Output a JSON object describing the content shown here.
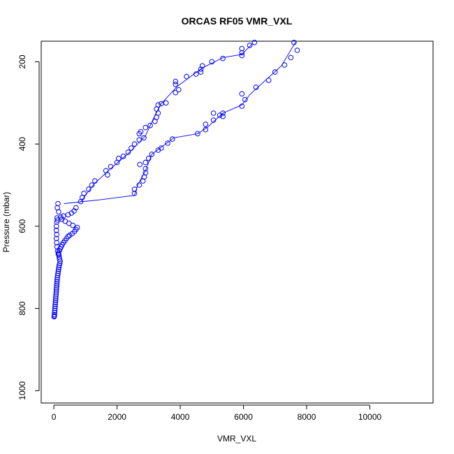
{
  "chart_data": {
    "type": "scatter",
    "title": "ORCAS RF05 VMR_VXL",
    "xlabel": "VMR_VXL",
    "ylabel": "Pressure (mbar)",
    "xlim": [
      -400,
      12000
    ],
    "ylim": [
      1030,
      150
    ],
    "y_reversed": true,
    "x_ticks": [
      0,
      2000,
      4000,
      6000,
      8000,
      10000
    ],
    "y_ticks": [
      200,
      400,
      600,
      800,
      1000
    ],
    "grid": false,
    "legend": "none",
    "series_color": "#0000ff",
    "marker": "open-circle",
    "series": [
      {
        "name": "",
        "style": "points",
        "points": [
          [
            10,
            820
          ],
          [
            15,
            818
          ],
          [
            20,
            815
          ],
          [
            25,
            810
          ],
          [
            30,
            805
          ],
          [
            35,
            800
          ],
          [
            40,
            795
          ],
          [
            45,
            790
          ],
          [
            50,
            785
          ],
          [
            55,
            780
          ],
          [
            60,
            775
          ],
          [
            65,
            770
          ],
          [
            70,
            765
          ],
          [
            75,
            760
          ],
          [
            80,
            755
          ],
          [
            85,
            750
          ],
          [
            90,
            745
          ],
          [
            95,
            740
          ],
          [
            100,
            735
          ],
          [
            105,
            730
          ],
          [
            110,
            725
          ],
          [
            120,
            720
          ],
          [
            130,
            715
          ],
          [
            140,
            710
          ],
          [
            150,
            705
          ],
          [
            160,
            700
          ],
          [
            170,
            695
          ],
          [
            190,
            690
          ],
          [
            200,
            685
          ],
          [
            180,
            680
          ],
          [
            170,
            675
          ],
          [
            160,
            670
          ],
          [
            150,
            665
          ],
          [
            170,
            660
          ],
          [
            200,
            655
          ],
          [
            230,
            650
          ],
          [
            260,
            645
          ],
          [
            300,
            640
          ],
          [
            350,
            635
          ],
          [
            400,
            630
          ],
          [
            450,
            625
          ],
          [
            500,
            622
          ],
          [
            580,
            618
          ],
          [
            650,
            613
          ],
          [
            700,
            608
          ],
          [
            740,
            603
          ],
          [
            600,
            598
          ],
          [
            480,
            593
          ],
          [
            360,
            588
          ],
          [
            250,
            583
          ],
          [
            120,
            585
          ],
          [
            100,
            580
          ],
          [
            90,
            590
          ],
          [
            80,
            600
          ],
          [
            80,
            610
          ],
          [
            90,
            620
          ],
          [
            80,
            630
          ],
          [
            90,
            640
          ],
          [
            100,
            650
          ],
          [
            120,
            660
          ],
          [
            140,
            668
          ],
          [
            220,
            578
          ],
          [
            300,
            575
          ],
          [
            450,
            572
          ],
          [
            560,
            568
          ],
          [
            640,
            563
          ],
          [
            700,
            555
          ],
          [
            150,
            565
          ],
          [
            110,
            555
          ],
          [
            130,
            545
          ],
          [
            2550,
            520
          ],
          [
            2550,
            510
          ],
          [
            2700,
            500
          ],
          [
            2820,
            490
          ],
          [
            2860,
            480
          ],
          [
            2900,
            470
          ],
          [
            2900,
            460
          ],
          [
            2720,
            450
          ],
          [
            2900,
            445
          ],
          [
            3000,
            435
          ],
          [
            3100,
            425
          ],
          [
            3300,
            415
          ],
          [
            3400,
            410
          ],
          [
            3600,
            398
          ],
          [
            3750,
            388
          ],
          [
            4550,
            375
          ],
          [
            4800,
            365
          ],
          [
            4800,
            352
          ],
          [
            5050,
            342
          ],
          [
            5050,
            325
          ],
          [
            5250,
            330
          ],
          [
            5350,
            325
          ],
          [
            5350,
            333
          ],
          [
            5950,
            308
          ],
          [
            6050,
            292
          ],
          [
            5950,
            278
          ],
          [
            6400,
            262
          ],
          [
            6800,
            245
          ],
          [
            7000,
            225
          ],
          [
            7300,
            208
          ],
          [
            7500,
            190
          ],
          [
            7700,
            172
          ],
          [
            7600,
            153
          ]
        ]
      },
      {
        "name": "",
        "style": "points",
        "points": [
          [
            850,
            540
          ],
          [
            900,
            530
          ],
          [
            950,
            520
          ],
          [
            1100,
            510
          ],
          [
            1200,
            500
          ],
          [
            1300,
            490
          ],
          [
            1700,
            475
          ],
          [
            1650,
            465
          ],
          [
            1800,
            455
          ],
          [
            2000,
            445
          ],
          [
            2050,
            435
          ],
          [
            2200,
            430
          ],
          [
            2350,
            420
          ],
          [
            2450,
            410
          ],
          [
            2550,
            400
          ],
          [
            2700,
            390
          ],
          [
            2850,
            385
          ],
          [
            2700,
            375
          ],
          [
            2750,
            370
          ],
          [
            2900,
            360
          ],
          [
            3050,
            355
          ],
          [
            3200,
            345
          ],
          [
            3250,
            335
          ],
          [
            3300,
            325
          ],
          [
            3250,
            315
          ],
          [
            3300,
            305
          ],
          [
            3400,
            302
          ],
          [
            3550,
            300
          ],
          [
            3850,
            275
          ],
          [
            3950,
            268
          ],
          [
            3850,
            255
          ],
          [
            3850,
            248
          ],
          [
            4200,
            236
          ],
          [
            4500,
            230
          ],
          [
            4650,
            225
          ],
          [
            4650,
            218
          ],
          [
            4700,
            210
          ],
          [
            5000,
            200
          ],
          [
            5350,
            192
          ],
          [
            5950,
            185
          ],
          [
            5950,
            178
          ],
          [
            5950,
            168
          ],
          [
            6200,
            160
          ],
          [
            6350,
            153
          ]
        ]
      },
      {
        "name": "",
        "style": "line",
        "points": [
          [
            320,
            545
          ],
          [
            1550,
            535
          ],
          [
            2550,
            525
          ],
          [
            2650,
            500
          ],
          [
            2900,
            465
          ],
          [
            3100,
            425
          ],
          [
            3800,
            385
          ],
          [
            4550,
            375
          ],
          [
            4850,
            360
          ],
          [
            5350,
            325
          ],
          [
            5950,
            305
          ],
          [
            6200,
            280
          ],
          [
            7200,
            210
          ],
          [
            7650,
            152
          ]
        ]
      },
      {
        "name": "",
        "style": "line",
        "points": [
          [
            850,
            540
          ],
          [
            1300,
            495
          ],
          [
            1800,
            460
          ],
          [
            2400,
            420
          ],
          [
            2900,
            380
          ],
          [
            3200,
            330
          ],
          [
            3400,
            302
          ],
          [
            3900,
            260
          ],
          [
            4700,
            215
          ],
          [
            5350,
            190
          ],
          [
            5950,
            182
          ],
          [
            6300,
            155
          ]
        ]
      }
    ]
  }
}
